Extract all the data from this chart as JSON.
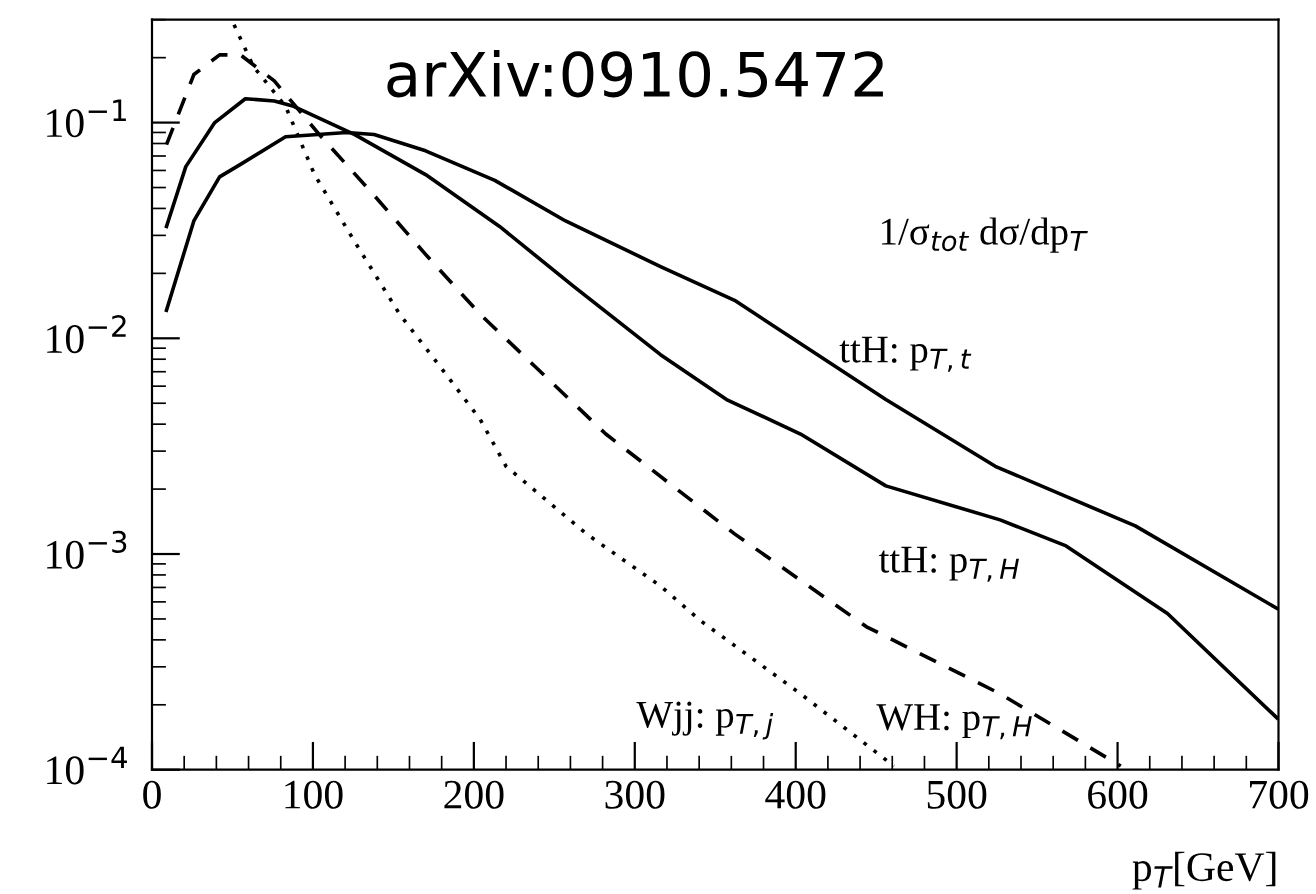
{
  "chart_data": {
    "type": "line",
    "log": "y",
    "ylabel": "1/σ$_{tot}$ dσ/dp$_{T}$",
    "xlabel": "p$_{T}$[GeV]",
    "annotations": [
      "arXiv:0910.5472"
    ],
    "xlim": [
      0,
      700
    ],
    "xticks": [
      0,
      100,
      200,
      300,
      400,
      500,
      600,
      700
    ],
    "ylim": [
      0.0001,
      0.3
    ],
    "yticks": [
      {
        "value": 0.0001,
        "label": "10$^{−4}$"
      },
      {
        "value": 0.001,
        "label": "10$^{−3}$"
      },
      {
        "value": 0.01,
        "label": "10$^{−2}$"
      },
      {
        "value": 0.1,
        "label": "10$^{−1}$"
      }
    ],
    "grid": false,
    "legend": false,
    "marker": "none",
    "series": [
      {
        "name": "ttH: p$_{T,t}$",
        "color": "#000000",
        "line_style": "solid",
        "x": [
          9,
          26,
          42,
          55,
          83,
          121,
          138,
          170,
          213,
          257,
          316,
          362,
          456,
          524,
          611,
          699
        ],
        "values": [
          0.0135,
          0.035,
          0.056,
          0.064,
          0.086,
          0.09,
          0.088,
          0.074,
          0.054,
          0.035,
          0.0215,
          0.015,
          0.0052,
          0.00255,
          0.00135,
          0.00056
        ]
      },
      {
        "name": "ttH: p$_{T,H}$",
        "color": "#000000",
        "line_style": "solid",
        "x": [
          9,
          21,
          39,
          58,
          76,
          88,
          126,
          170,
          216,
          262,
          316,
          357,
          403,
          456,
          527,
          568,
          631,
          699
        ],
        "values": [
          0.033,
          0.0625,
          0.1,
          0.129,
          0.126,
          0.119,
          0.088,
          0.0574,
          0.033,
          0.0174,
          0.0084,
          0.0052,
          0.0036,
          0.00207,
          0.00144,
          0.00109,
          0.00053,
          0.000174
        ]
      },
      {
        "name": "Wjj: p$_{T,j}$",
        "color": "#000000",
        "line_style": "dotted",
        "x": [
          51,
          63,
          83,
          101,
          126,
          154,
          179,
          204,
          220,
          270,
          316,
          341,
          403,
          461
        ],
        "values": [
          0.284,
          0.182,
          0.119,
          0.0574,
          0.028,
          0.0129,
          0.0074,
          0.0042,
          0.00255,
          0.00124,
          0.00071,
          0.00049,
          0.000225,
          0.000104
        ]
      },
      {
        "name": "WH: p$_{T,H}$",
        "color": "#000000",
        "line_style": "dashed",
        "x": [
          9,
          26,
          42,
          55,
          76,
          104,
          138,
          170,
          204,
          238,
          282,
          362,
          444,
          527,
          602
        ],
        "values": [
          0.079,
          0.167,
          0.206,
          0.206,
          0.156,
          0.088,
          0.046,
          0.0245,
          0.0129,
          0.0074,
          0.0036,
          0.00124,
          0.00046,
          0.000225,
          0.000104
        ]
      }
    ]
  }
}
